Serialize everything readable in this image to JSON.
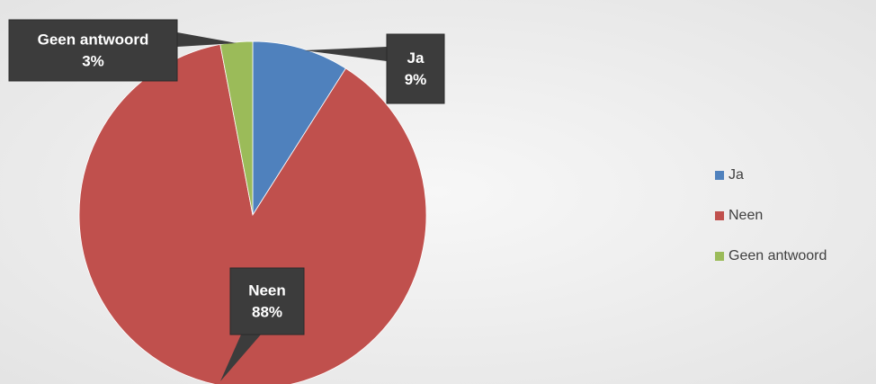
{
  "chart_data": {
    "type": "pie",
    "categories": [
      "Ja",
      "Neen",
      "Geen antwoord"
    ],
    "values": [
      9,
      88,
      3
    ],
    "value_labels": [
      "9%",
      "88%",
      "3%"
    ],
    "colors": [
      "#4f81bd",
      "#c0504d",
      "#9bbb59"
    ],
    "legend": "right"
  }
}
